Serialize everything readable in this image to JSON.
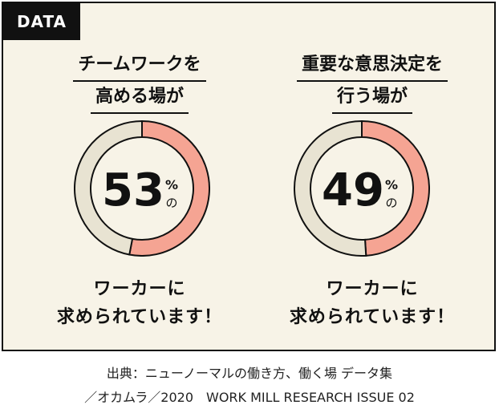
{
  "badge": "DATA",
  "colors": {
    "background": "#f7f3e7",
    "share": "#f5a493",
    "rest": "#e8e3d2",
    "ink": "#111111"
  },
  "chart_data": [
    {
      "type": "pie",
      "title_lines": [
        "チームワークを",
        "高める場が"
      ],
      "values": [
        53,
        47
      ],
      "value_label": "53",
      "unit_lines": [
        "%",
        "の"
      ],
      "caption_lines": [
        "ワーカーに",
        "求められています！"
      ]
    },
    {
      "type": "pie",
      "title_lines": [
        "重要な意思決定を",
        "行う場が"
      ],
      "values": [
        49,
        51
      ],
      "value_label": "49",
      "unit_lines": [
        "%",
        "の"
      ],
      "caption_lines": [
        "ワーカーに",
        "求められています！"
      ]
    }
  ],
  "source": {
    "line1": "出典：ニューノーマルの働き方、働く場 データ集",
    "line2": "／オカムラ／2020　WORK MILL RESEARCH ISSUE 02"
  }
}
